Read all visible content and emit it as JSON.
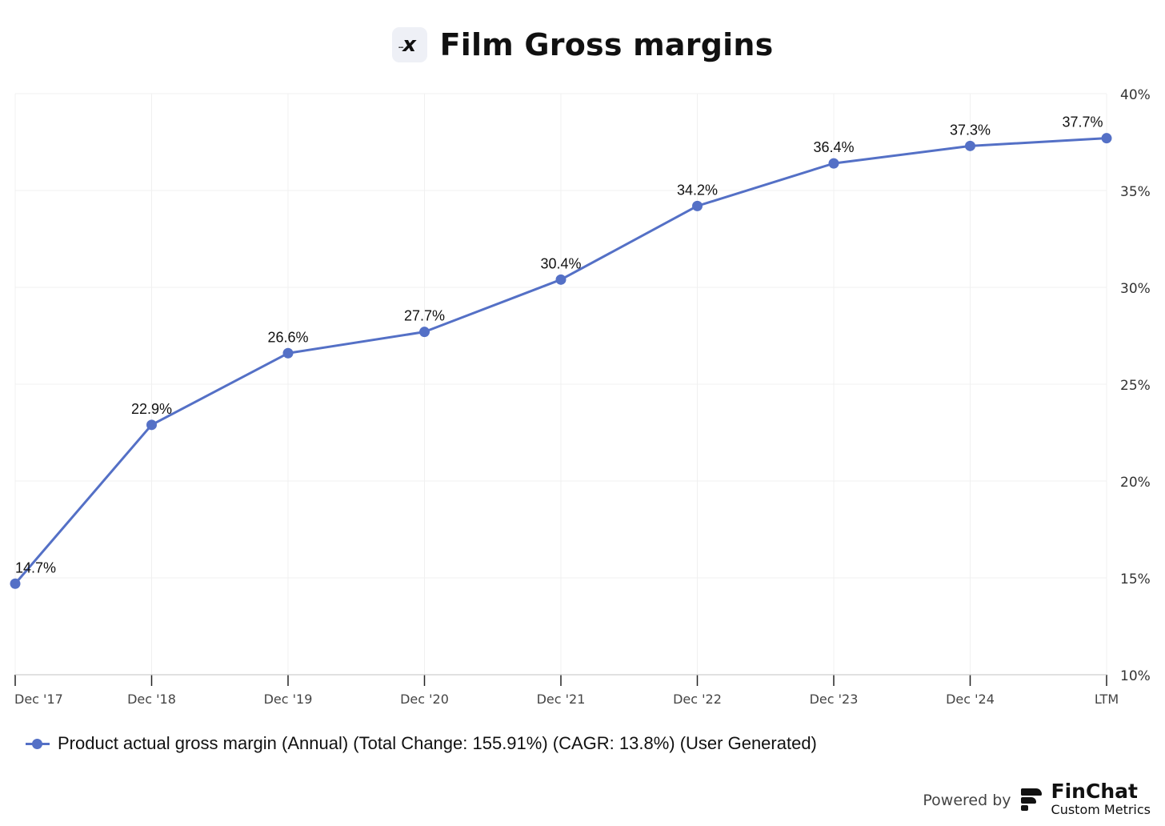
{
  "header": {
    "logo_glyph": "x",
    "title": "Film Gross margins"
  },
  "chart_data": {
    "type": "line",
    "title": "Film Gross margins",
    "categories": [
      "Dec '17",
      "Dec '18",
      "Dec '19",
      "Dec '20",
      "Dec '21",
      "Dec '22",
      "Dec '23",
      "Dec '24",
      "LTM"
    ],
    "series": [
      {
        "name": "Product actual gross margin (Annual) (Total Change: 155.91%) (CAGR: 13.8%) (User Generated)",
        "values": [
          14.7,
          22.9,
          26.6,
          27.7,
          30.4,
          34.2,
          36.4,
          37.3,
          37.7
        ],
        "labels": [
          "14.7%",
          "22.9%",
          "26.6%",
          "27.7%",
          "30.4%",
          "34.2%",
          "36.4%",
          "37.3%",
          "37.7%"
        ],
        "color": "#5470c6"
      }
    ],
    "y_axis": {
      "position": "right",
      "ylim": [
        10,
        40
      ],
      "ticks": [
        10,
        15,
        20,
        25,
        30,
        35,
        40
      ],
      "tick_labels": [
        "10%",
        "15%",
        "20%",
        "25%",
        "30%",
        "35%",
        "40%"
      ]
    },
    "grid": true,
    "legend_position": "bottom-left"
  },
  "legend": {
    "label": "Product actual gross margin (Annual) (Total Change: 155.91%) (CAGR: 13.8%) (User Generated)"
  },
  "footer": {
    "powered_by": "Powered by",
    "brand": "FinChat",
    "brand_sub": "Custom Metrics"
  },
  "colors": {
    "series": "#5470c6",
    "grid": "#f0f0f0",
    "axis": "#555555",
    "text": "#111111"
  }
}
